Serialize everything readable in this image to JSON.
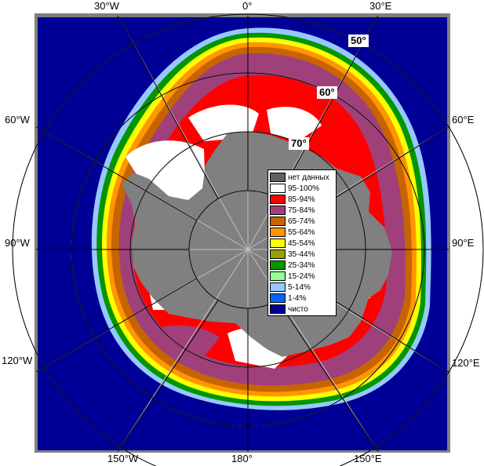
{
  "map": {
    "longitude_labels": {
      "w30": "30°W",
      "zero": "0°",
      "e30": "30°E",
      "w60": "60°W",
      "e60": "60°E",
      "w90": "90°W",
      "e90": "90°E",
      "w120": "120°W",
      "e120": "120°E",
      "w150": "150°W",
      "lon180": "180°",
      "e150": "150°E"
    },
    "latitude_labels": {
      "lat50": "50°",
      "lat60": "60°",
      "lat70": "70°"
    }
  },
  "legend": {
    "items": [
      {
        "label": "нет данных",
        "color": "#606060"
      },
      {
        "label": "95-100%",
        "color": "#ffffff"
      },
      {
        "label": "85-94%",
        "color": "#ff0000"
      },
      {
        "label": "75-84%",
        "color": "#a0407a"
      },
      {
        "label": "65-74%",
        "color": "#c86400"
      },
      {
        "label": "55-64%",
        "color": "#ff9600"
      },
      {
        "label": "45-54%",
        "color": "#ffff00"
      },
      {
        "label": "35-44%",
        "color": "#96a000"
      },
      {
        "label": "25-34%",
        "color": "#009600"
      },
      {
        "label": "15-24%",
        "color": "#96ff96"
      },
      {
        "label": "5-14%",
        "color": "#96c8ff"
      },
      {
        "label": "1-4%",
        "color": "#0064ff"
      },
      {
        "label": "чисто",
        "color": "#000096"
      }
    ]
  },
  "colors": {
    "ocean": "#000096",
    "land": "#808080",
    "frame_gray": "#808080",
    "grid": "#c0c0c0"
  }
}
